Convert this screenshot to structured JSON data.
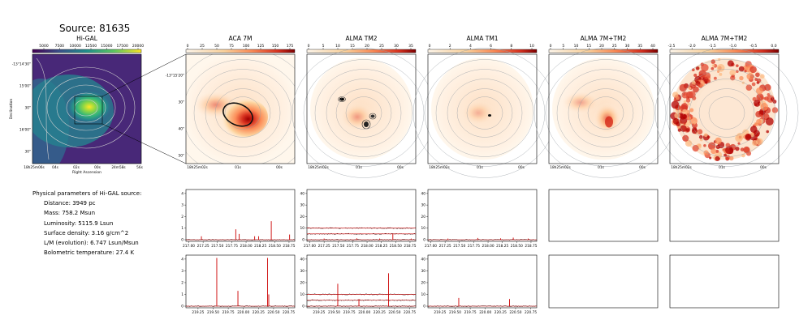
{
  "source": {
    "title": "Source: 81635"
  },
  "panels": [
    {
      "title": "Hi-GAL",
      "colorbar_ticks": [
        "5000",
        "7500",
        "10000",
        "12500",
        "15000",
        "17500",
        "20000"
      ],
      "ylabel": "Declination",
      "xlabel": "Right Ascension",
      "yticks": [
        "-13°14'30\"",
        "15'00\"",
        "30\"",
        "16'00\"",
        "30\""
      ],
      "xticks": [
        "18h25m06s",
        "04s",
        "02s",
        "00s",
        "24m58s",
        "56s"
      ]
    },
    {
      "title": "ACA 7M",
      "colorbar_ticks": [
        "0",
        "25",
        "50",
        "75",
        "100",
        "125",
        "150",
        "175"
      ],
      "yticks": [
        "-13°15'20\"",
        "30\"",
        "40\"",
        "50\""
      ],
      "xticks": [
        "18h25m02s",
        "01s",
        "00s"
      ]
    },
    {
      "title": "ALMA TM2",
      "colorbar_ticks": [
        "0",
        "5",
        "10",
        "15",
        "20",
        "25",
        "30",
        "35"
      ],
      "xticks": [
        "18h25m02s",
        "01s",
        "00s"
      ]
    },
    {
      "title": "ALMA TM1",
      "colorbar_ticks": [
        "0",
        "2",
        "4",
        "6",
        "8",
        "10"
      ],
      "xticks": [
        "18h25m02s",
        "01s",
        "00s"
      ]
    },
    {
      "title": "ALMA 7M+TM2",
      "colorbar_ticks": [
        "0",
        "5",
        "10",
        "15",
        "20",
        "25",
        "30",
        "35",
        "40"
      ],
      "xticks": [
        "18h25m02s",
        "01s",
        "00s"
      ]
    },
    {
      "title": "ALMA 7M+TM2",
      "colorbar_ticks": [
        "-2.5",
        "-2.0",
        "-1.5",
        "-1.0",
        "-0.5",
        "0.0"
      ],
      "xticks": [
        "18h25m02s",
        "01s",
        "00s"
      ]
    }
  ],
  "params": {
    "header": "Physical parameters of Hi-GAL source:",
    "items": [
      "Distance: 3949 pc",
      "Mass: 758.2 Msun",
      "Luminosity: 5115.9 Lsun",
      "Surface density: 3.16 g/cm^2",
      "L/M (evolution): 6.747 Lsun/Msun",
      "Bolometric temperature: 27.4 K"
    ]
  },
  "spectra": {
    "row1_xticks": [
      "217.00",
      "217.25",
      "217.50",
      "217.75",
      "218.00",
      "218.25",
      "218.50",
      "218.75"
    ],
    "row2_xticks": [
      "219.25",
      "219.50",
      "219.75",
      "220.00",
      "220.25",
      "220.50",
      "220.75"
    ],
    "panels": [
      {
        "row": 1,
        "col": 1,
        "yticks": [
          "0",
          "1",
          "2",
          "3",
          "4"
        ],
        "ymax": 4.2,
        "offsets": [
          0
        ],
        "xrange": [
          216.95,
          218.85
        ],
        "lines": [
          [
            217.22,
            0.3
          ],
          [
            217.82,
            0.9
          ],
          [
            217.88,
            0.5
          ],
          [
            218.15,
            0.3
          ],
          [
            218.22,
            0.3
          ],
          [
            218.44,
            1.6
          ],
          [
            218.76,
            0.45
          ]
        ]
      },
      {
        "row": 1,
        "col": 2,
        "yticks": [
          "0",
          "10",
          "20",
          "30",
          "40"
        ],
        "ymax": 42,
        "offsets": [
          0,
          5,
          10
        ],
        "xrange": [
          216.95,
          218.85
        ],
        "lines": [
          [
            218.45,
            5
          ],
          [
            217.25,
            1
          ],
          [
            217.82,
            1.2
          ],
          [
            218.22,
            1
          ],
          [
            218.77,
            1
          ]
        ]
      },
      {
        "row": 1,
        "col": 3,
        "yticks": [
          "0",
          "10",
          "20",
          "30",
          "40"
        ],
        "ymax": 42,
        "offsets": [
          0
        ],
        "xrange": [
          216.95,
          218.85
        ],
        "lines": [
          [
            217.82,
            1.5
          ],
          [
            218.22,
            1.2
          ],
          [
            218.44,
            1.8
          ],
          [
            217.3,
            1
          ],
          [
            218.7,
            1
          ]
        ]
      },
      {
        "row": 2,
        "col": 1,
        "yticks": [
          "0",
          "1",
          "2",
          "3",
          "4"
        ],
        "ymax": 4.2,
        "offsets": [
          0
        ],
        "xrange": [
          219.05,
          220.85
        ],
        "lines": [
          [
            219.56,
            4.1
          ],
          [
            219.91,
            1.3
          ],
          [
            220.4,
            4.1
          ],
          [
            220.42,
            1.0
          ]
        ]
      },
      {
        "row": 2,
        "col": 2,
        "yticks": [
          "0",
          "10",
          "20",
          "30",
          "40"
        ],
        "ymax": 42,
        "offsets": [
          0,
          5,
          10
        ],
        "xrange": [
          219.05,
          220.85
        ],
        "lines": [
          [
            219.56,
            19
          ],
          [
            219.91,
            6
          ],
          [
            220.4,
            28
          ]
        ]
      },
      {
        "row": 2,
        "col": 3,
        "yticks": [
          "0",
          "10",
          "20",
          "30",
          "40"
        ],
        "ymax": 42,
        "offsets": [
          0
        ],
        "xrange": [
          219.05,
          220.85
        ],
        "lines": [
          [
            219.56,
            7
          ],
          [
            220.4,
            6
          ]
        ]
      }
    ]
  }
}
